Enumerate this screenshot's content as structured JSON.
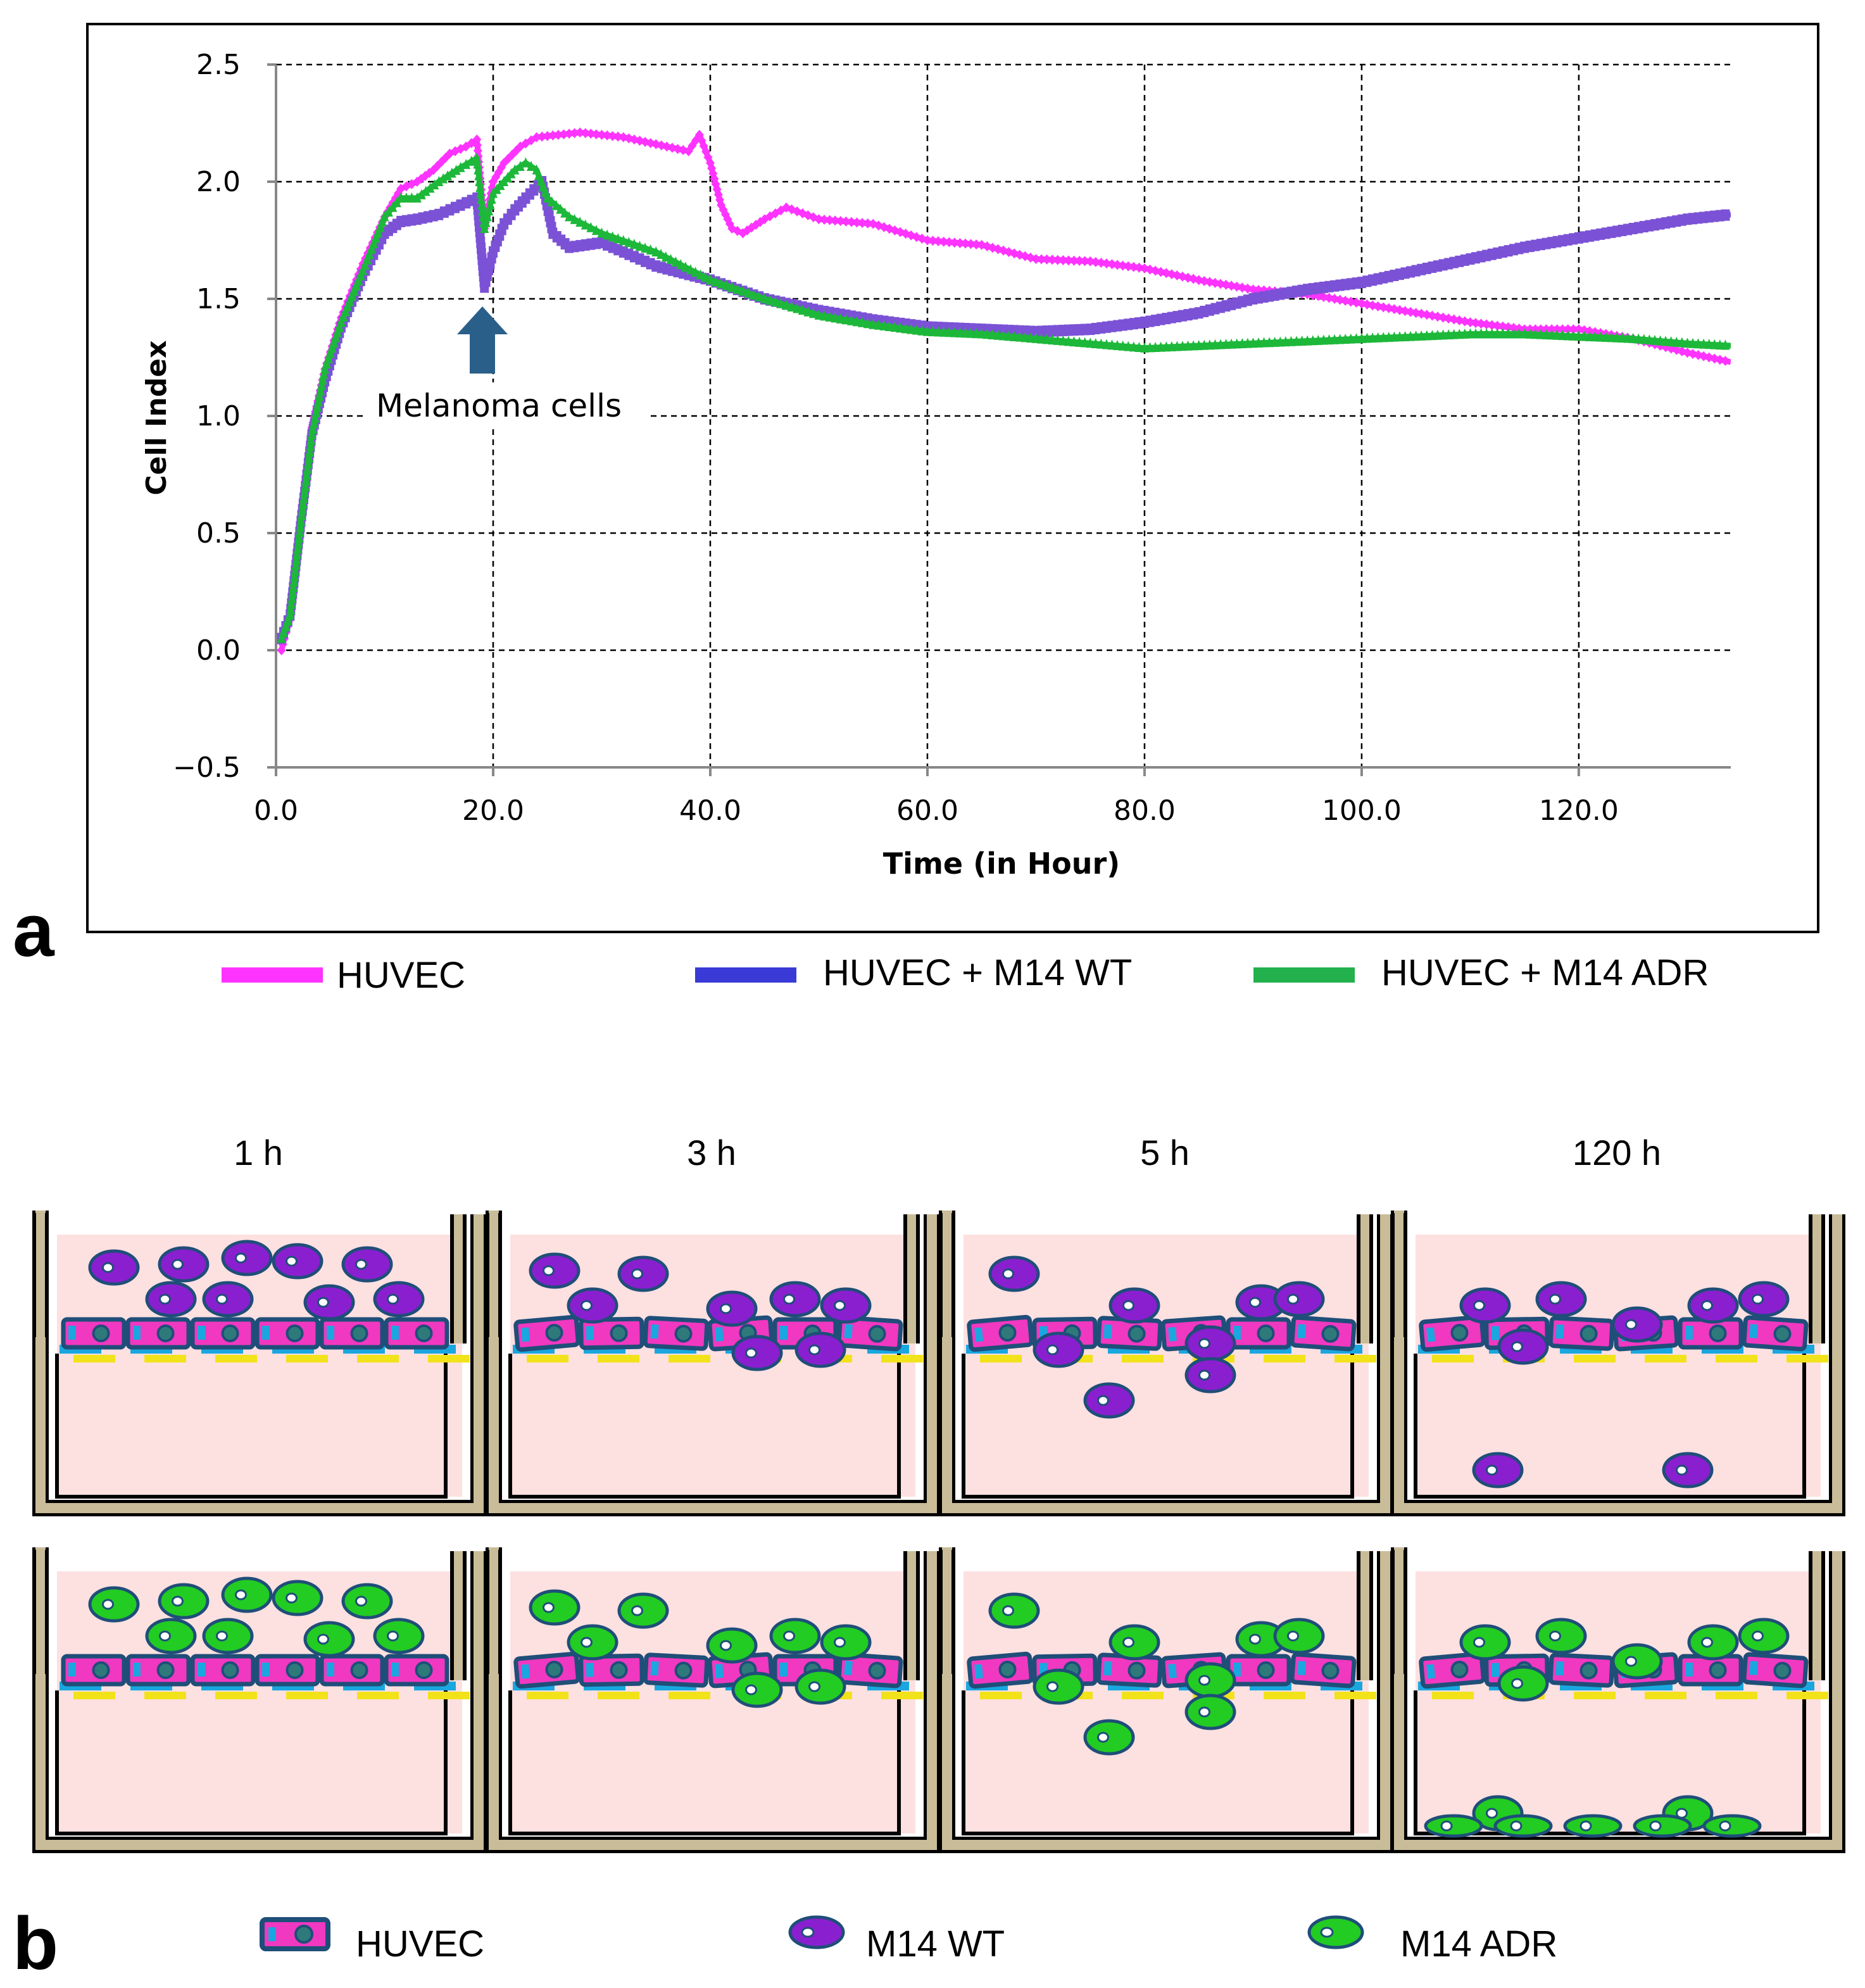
{
  "chart_data": {
    "type": "line",
    "panel_label": "a",
    "xlabel": "Time (in Hour)",
    "ylabel": "Cell Index",
    "xlim": [
      0,
      134
    ],
    "ylim": [
      -0.5,
      2.5
    ],
    "x_ticks": [
      "0.0",
      "20.0",
      "40.0",
      "60.0",
      "80.0",
      "100.0",
      "120.0"
    ],
    "y_ticks": [
      "2.5",
      "2.0",
      "1.5",
      "1.0",
      "0.5",
      "0.0",
      "−0.5"
    ],
    "grid": true,
    "annotation": {
      "text": "Melanoma cells",
      "x": 19,
      "y": 1.55
    },
    "series": [
      {
        "name": "HUVEC",
        "color": "#ff33ff",
        "x": [
          0.5,
          1.3,
          2.3,
          3.3,
          4.5,
          6,
          8,
          10,
          11.5,
          13,
          14.5,
          16,
          17.5,
          18.5,
          19.2,
          20,
          21,
          22.5,
          24,
          26,
          28,
          30,
          32,
          35,
          38,
          39,
          40,
          41,
          42,
          43,
          45,
          47,
          50,
          55,
          60,
          65,
          70,
          75,
          80,
          85,
          90,
          95,
          100,
          105,
          110,
          115,
          120,
          125,
          130,
          134
        ],
        "y": [
          0,
          0.15,
          0.55,
          0.95,
          1.2,
          1.42,
          1.65,
          1.85,
          1.97,
          2.0,
          2.05,
          2.12,
          2.15,
          2.18,
          1.8,
          2.0,
          2.08,
          2.15,
          2.19,
          2.2,
          2.21,
          2.2,
          2.19,
          2.16,
          2.13,
          2.2,
          2.08,
          1.9,
          1.8,
          1.78,
          1.84,
          1.89,
          1.84,
          1.82,
          1.75,
          1.73,
          1.67,
          1.66,
          1.63,
          1.58,
          1.54,
          1.52,
          1.48,
          1.44,
          1.4,
          1.37,
          1.37,
          1.33,
          1.27,
          1.23
        ]
      },
      {
        "name": "HUVEC + M14 WT",
        "color": "#7b52d6",
        "x": [
          0.5,
          1.3,
          2.3,
          3.3,
          4.5,
          6,
          8,
          10,
          11.5,
          13,
          15,
          17,
          18.5,
          19.2,
          20,
          21,
          22,
          23,
          24.5,
          25.5,
          27,
          30,
          35,
          40,
          45,
          50,
          55,
          60,
          65,
          70,
          75,
          80,
          85,
          90,
          95,
          100,
          105,
          110,
          115,
          120,
          125,
          130,
          134
        ],
        "y": [
          0.05,
          0.15,
          0.55,
          0.92,
          1.15,
          1.38,
          1.6,
          1.78,
          1.83,
          1.84,
          1.86,
          1.9,
          1.93,
          1.55,
          1.7,
          1.82,
          1.88,
          1.93,
          2.0,
          1.78,
          1.72,
          1.74,
          1.64,
          1.58,
          1.5,
          1.45,
          1.41,
          1.38,
          1.37,
          1.36,
          1.37,
          1.4,
          1.44,
          1.5,
          1.54,
          1.57,
          1.62,
          1.67,
          1.72,
          1.76,
          1.8,
          1.84,
          1.86
        ]
      },
      {
        "name": "HUVEC + M14 ADR",
        "color": "#1db83a",
        "x": [
          0.5,
          1.3,
          2.3,
          3.3,
          4.5,
          6,
          8,
          10,
          11.5,
          13,
          15,
          17,
          18.5,
          19.2,
          20,
          21,
          22,
          23,
          24,
          25,
          27,
          30,
          35,
          40,
          45,
          50,
          55,
          60,
          65,
          70,
          75,
          80,
          85,
          90,
          95,
          100,
          105,
          110,
          115,
          120,
          125,
          130,
          134
        ],
        "y": [
          0.05,
          0.15,
          0.55,
          0.92,
          1.2,
          1.4,
          1.62,
          1.85,
          1.93,
          1.93,
          2.0,
          2.06,
          2.1,
          1.8,
          1.95,
          2.0,
          2.05,
          2.08,
          2.05,
          1.93,
          1.85,
          1.78,
          1.7,
          1.58,
          1.5,
          1.43,
          1.39,
          1.36,
          1.35,
          1.33,
          1.31,
          1.29,
          1.3,
          1.31,
          1.32,
          1.33,
          1.34,
          1.35,
          1.35,
          1.34,
          1.33,
          1.31,
          1.3
        ]
      }
    ]
  },
  "legend_a": [
    {
      "label": "HUVEC",
      "color": "#ff33ff"
    },
    {
      "label": "HUVEC + M14 WT",
      "color": "#3a3ad6"
    },
    {
      "label": "HUVEC + M14 ADR",
      "color": "#22b14c"
    }
  ],
  "panel_b": {
    "panel_label": "b",
    "time_labels": [
      "1 h",
      "3 h",
      "5 h",
      "120 h"
    ],
    "legend": [
      {
        "label": "HUVEC",
        "icon": "huvec-cell-icon"
      },
      {
        "label": "M14 WT",
        "icon": "m14-wt-cell-icon"
      },
      {
        "label": "M14 ADR",
        "icon": "m14-adr-cell-icon"
      }
    ],
    "colors": {
      "well_wall": "#c9bc98",
      "medium": "#fde0e0",
      "huvec_fill": "#f038c0",
      "huvec_border": "#1f4e79",
      "m14_wt_fill": "#8a1fd0",
      "m14_adr_fill": "#22cc22",
      "membrane_blue": "#1aa7e0",
      "membrane_yellow": "#f2e21a"
    }
  }
}
